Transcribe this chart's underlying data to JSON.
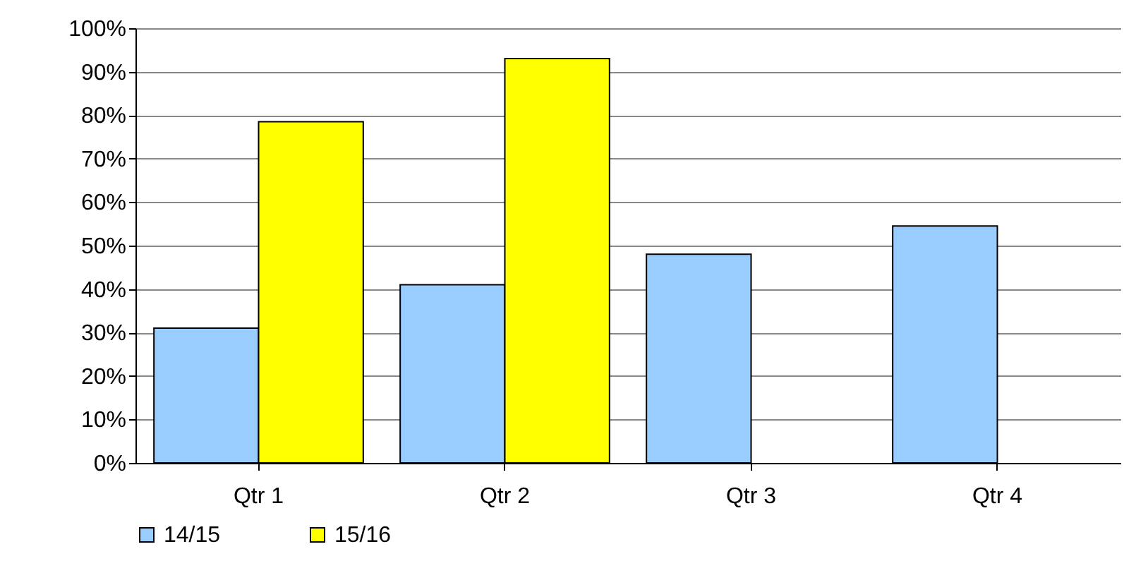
{
  "chart_data": {
    "type": "bar",
    "categories": [
      "Qtr 1",
      "Qtr 2",
      "Qtr 3",
      "Qtr 4"
    ],
    "series": [
      {
        "name": "14/15",
        "color": "#99ccff",
        "values": [
          31,
          41,
          48,
          54.5
        ]
      },
      {
        "name": "15/16",
        "color": "#ffff00",
        "values": [
          78.5,
          93,
          null,
          null
        ]
      }
    ],
    "ylim": [
      0,
      100
    ],
    "yticks": [
      {
        "value": 0,
        "label": "0%"
      },
      {
        "value": 10,
        "label": "10%"
      },
      {
        "value": 20,
        "label": "20%"
      },
      {
        "value": 30,
        "label": "30%"
      },
      {
        "value": 40,
        "label": "40%"
      },
      {
        "value": 50,
        "label": "50%"
      },
      {
        "value": 60,
        "label": "60%"
      },
      {
        "value": 70,
        "label": "70%"
      },
      {
        "value": 80,
        "label": "80%"
      },
      {
        "value": 90,
        "label": "90%"
      },
      {
        "value": 100,
        "label": "100%"
      }
    ],
    "grid": "y",
    "legend": "bottom"
  }
}
